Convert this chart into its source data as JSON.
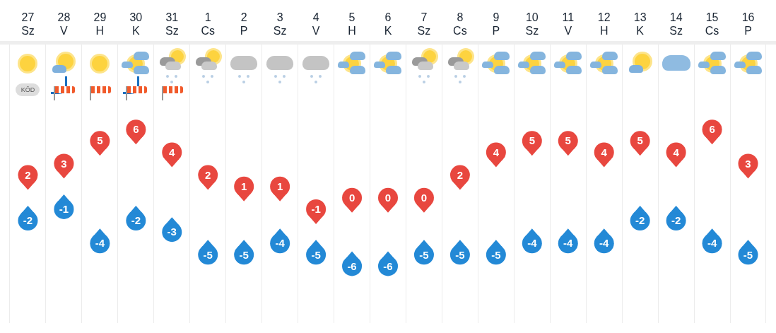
{
  "chart_data": {
    "type": "scatter",
    "categories": [
      "27\nSz",
      "28\nV",
      "29\nH",
      "30\nK",
      "31\nSz",
      "1\nCs",
      "2\nP",
      "3\nSz",
      "4\nV",
      "5\nH",
      "6\nK",
      "7\nSz",
      "8\nCs",
      "9\nP",
      "10\nSz",
      "11\nV",
      "12\nH",
      "13\nK",
      "14\nSz",
      "15\nCs",
      "16\nP"
    ],
    "series": [
      {
        "color": "#e8473f",
        "values": [
          2,
          3,
          5,
          6,
          4,
          2,
          1,
          1,
          -1,
          0,
          0,
          0,
          2,
          4,
          5,
          5,
          4,
          5,
          4,
          6,
          3
        ]
      },
      {
        "color": "#2389d6",
        "values": [
          -2,
          -1,
          -4,
          -2,
          -3,
          -5,
          -5,
          -4,
          -5,
          -6,
          -6,
          -5,
          -5,
          -5,
          -4,
          -4,
          -4,
          -2,
          -2,
          -4,
          -5
        ]
      }
    ],
    "annotations": [
      "KÖD"
    ],
    "marker": "circle",
    "data_labels": true,
    "grid": "x",
    "legend": false
  }
}
